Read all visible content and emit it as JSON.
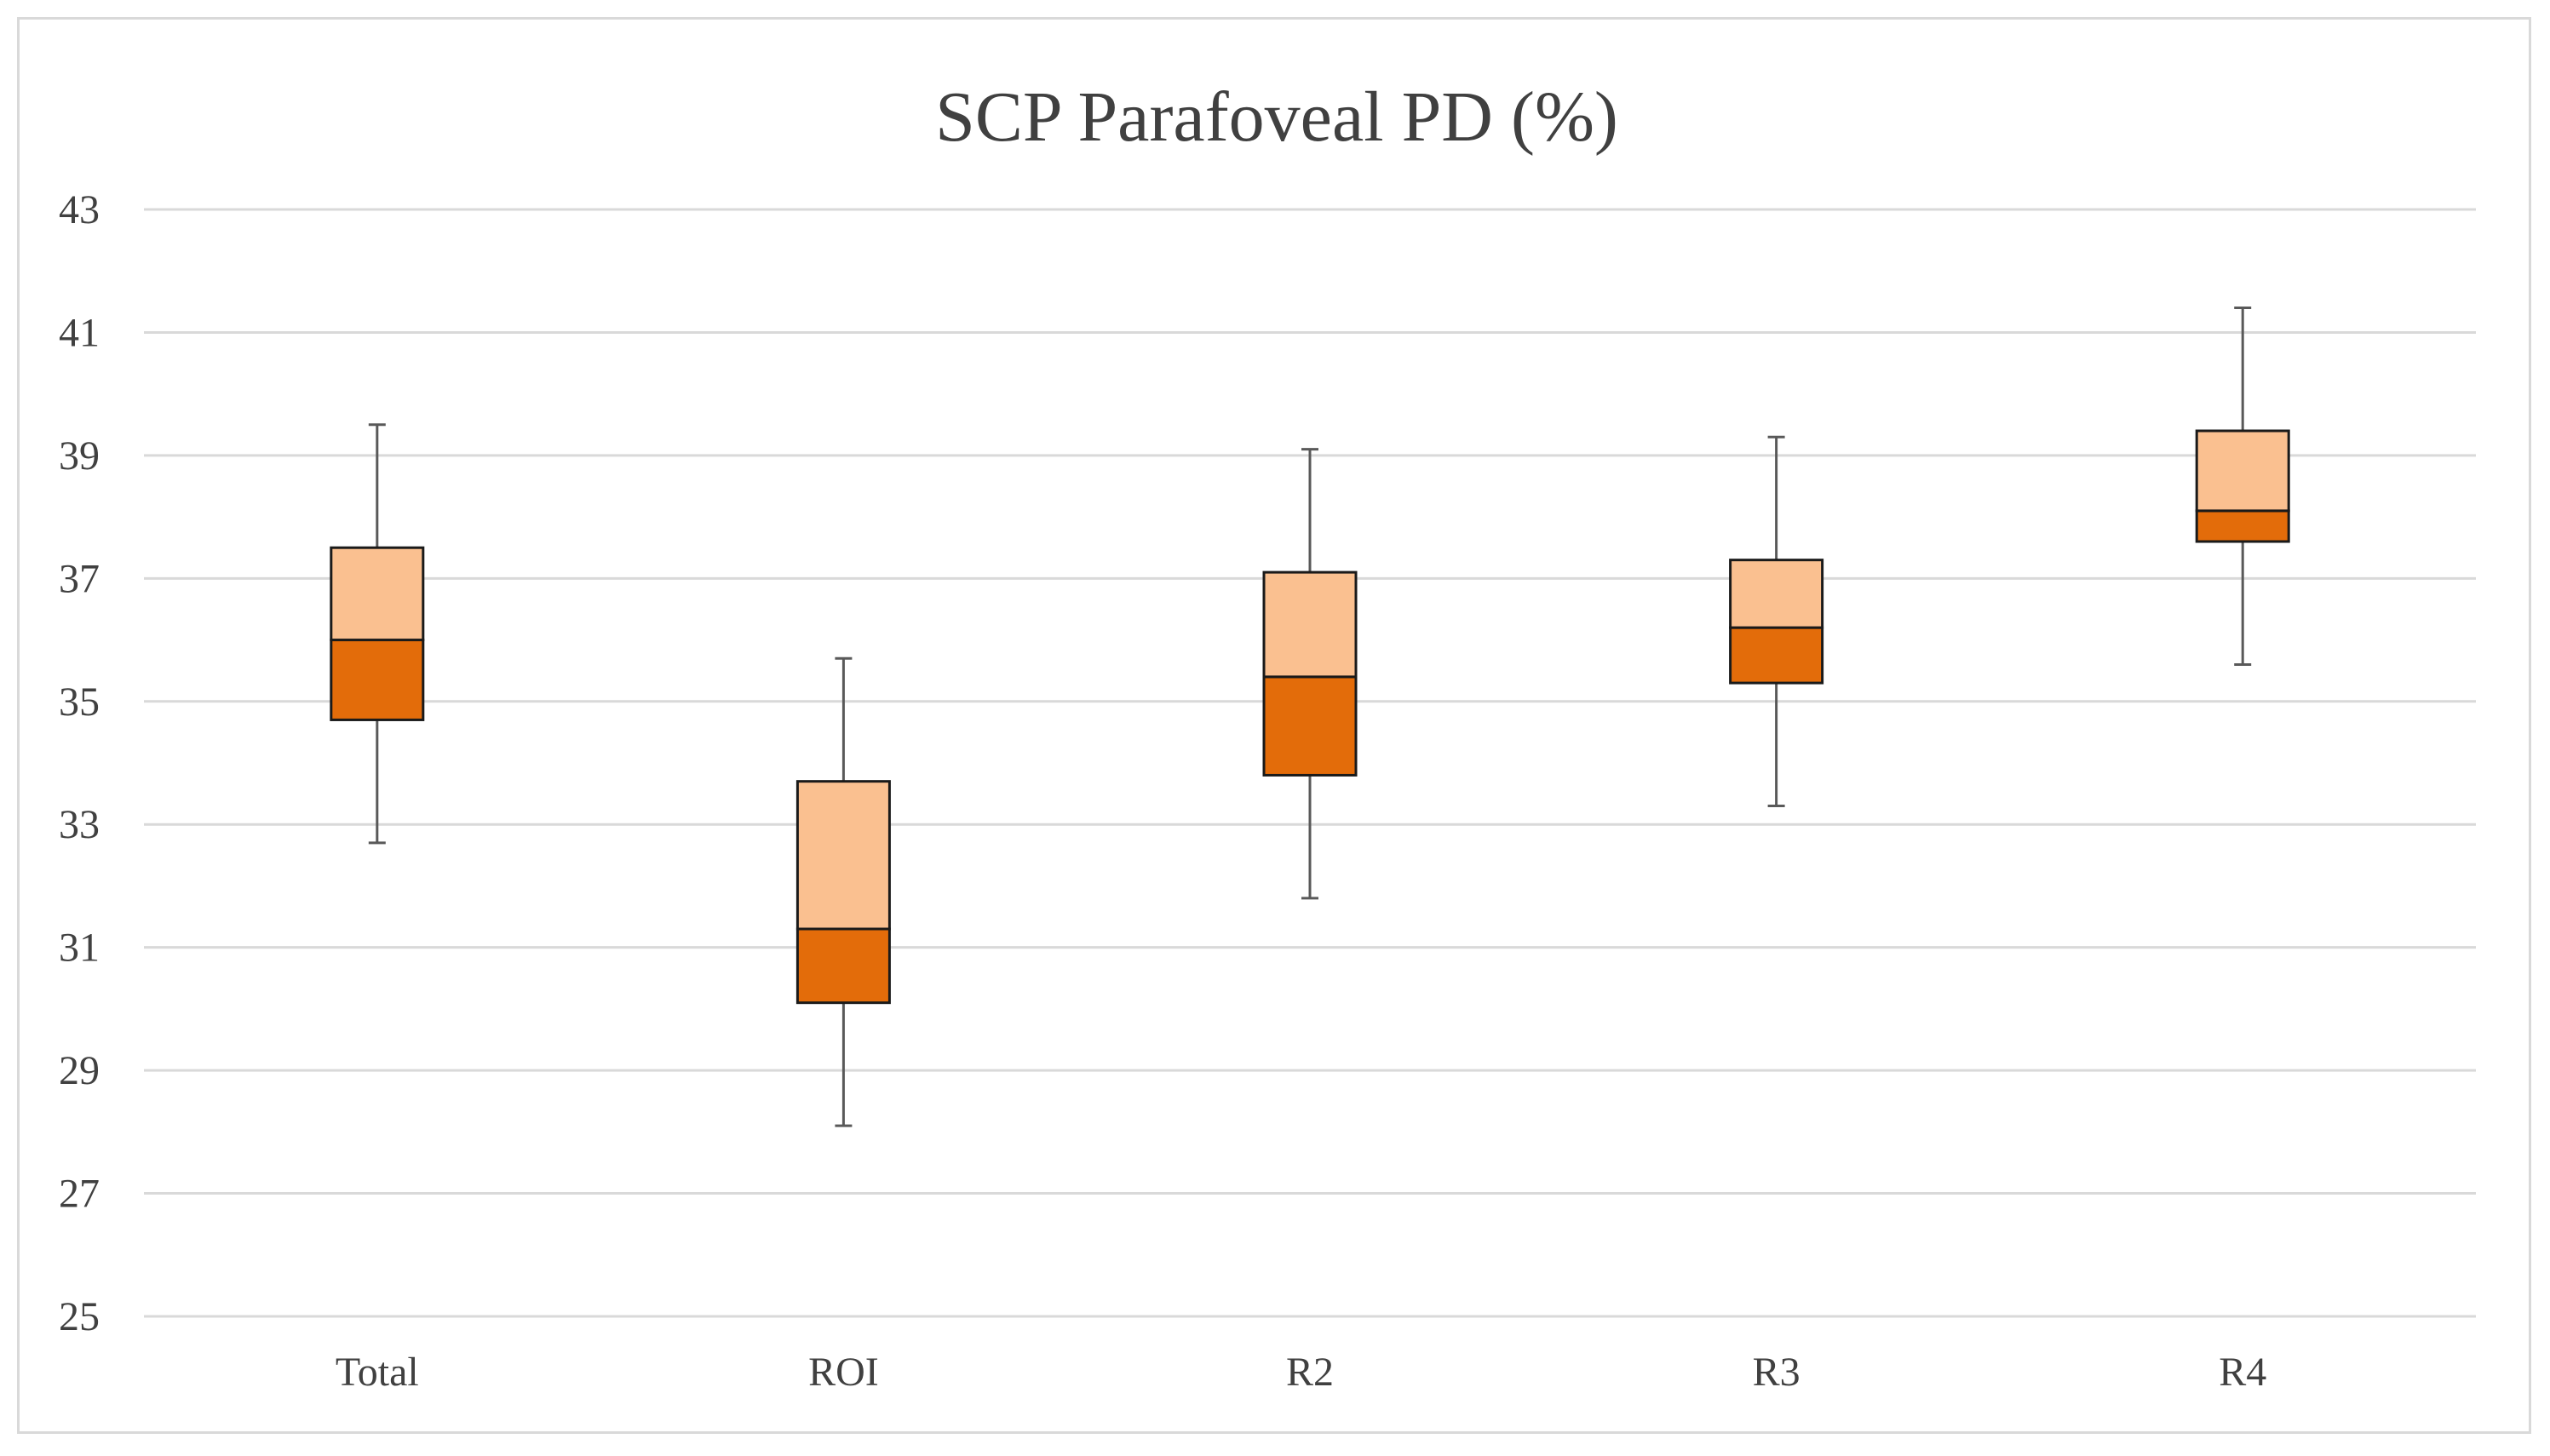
{
  "chart_data": {
    "type": "boxplot",
    "title": "SCP Parafoveal PD (%)",
    "xlabel": "",
    "ylabel": "",
    "ylim": [
      25,
      43
    ],
    "y_ticks": [
      25,
      27,
      29,
      31,
      33,
      35,
      37,
      39,
      41,
      43
    ],
    "grid": true,
    "legend": "none",
    "categories": [
      "Total",
      "ROI",
      "R2",
      "R3",
      "R4"
    ],
    "boxes": [
      {
        "category": "Total",
        "min": 32.7,
        "q1": 34.7,
        "median": 36.0,
        "q3": 37.5,
        "max": 39.5
      },
      {
        "category": "ROI",
        "min": 28.1,
        "q1": 30.1,
        "median": 31.3,
        "q3": 33.7,
        "max": 35.7
      },
      {
        "category": "R2",
        "min": 31.8,
        "q1": 33.8,
        "median": 35.4,
        "q3": 37.1,
        "max": 39.1
      },
      {
        "category": "R3",
        "min": 33.3,
        "q1": 35.3,
        "median": 36.2,
        "q3": 37.3,
        "max": 39.3
      },
      {
        "category": "R4",
        "min": 35.6,
        "q1": 37.6,
        "median": 38.1,
        "q3": 39.4,
        "max": 41.4
      }
    ],
    "colors": {
      "lower_box": "#e36c0a",
      "upper_box": "#fac090",
      "outline": "#1a1a1a",
      "whisker": "#595959",
      "grid": "#d9d9d9",
      "text": "#404040"
    }
  }
}
